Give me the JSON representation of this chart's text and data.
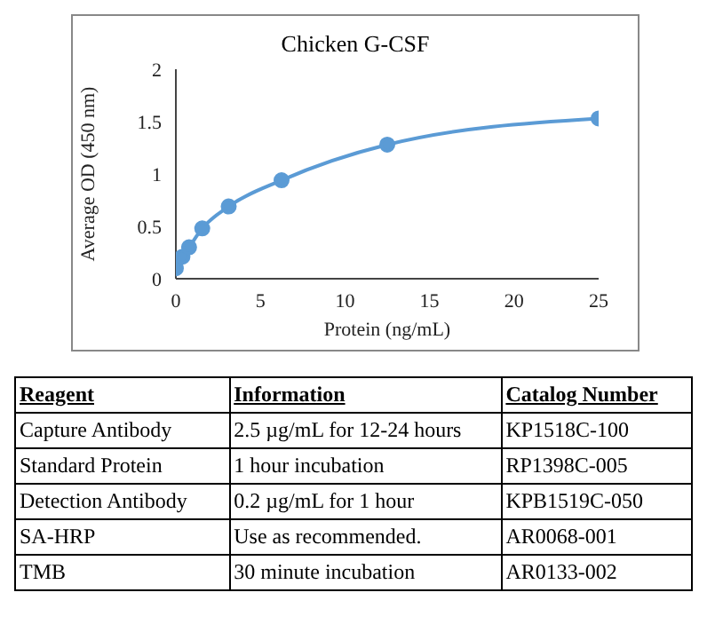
{
  "chart_data": {
    "type": "line",
    "title": "Chicken G-CSF",
    "xlabel": "Protein (ng/mL)",
    "ylabel": "Average OD (450 nm)",
    "x": [
      0,
      0.39,
      0.78,
      1.56,
      3.125,
      6.25,
      12.5,
      25
    ],
    "series": [
      {
        "color": "#5b9bd5",
        "values": [
          0.1,
          0.21,
          0.3,
          0.48,
          0.69,
          0.94,
          1.28,
          1.53
        ]
      }
    ],
    "xlim": [
      0,
      25
    ],
    "xticks": [
      0,
      5,
      10,
      15,
      20,
      25
    ],
    "ylim": [
      0,
      2
    ],
    "yticks": [
      0,
      0.5,
      1,
      1.5,
      2
    ],
    "grid": false,
    "legend": false,
    "marker": "circle",
    "line_style": "solid",
    "annotations": [
      "Reagent",
      "Information",
      "Catalog Number",
      "Capture Antibody",
      "2.5 µg/mL for 12-24 hours",
      "KP1518C-100",
      "Standard Protein",
      "1 hour incubation",
      "RP1398C-005",
      "Detection Antibody",
      "0.2 µg/mL for 1 hour",
      "KPB1519C-050",
      "SA-HRP",
      "Use as recommended.",
      "AR0068-001",
      "TMB",
      "30 minute incubation",
      "AR0133-002"
    ]
  }
}
